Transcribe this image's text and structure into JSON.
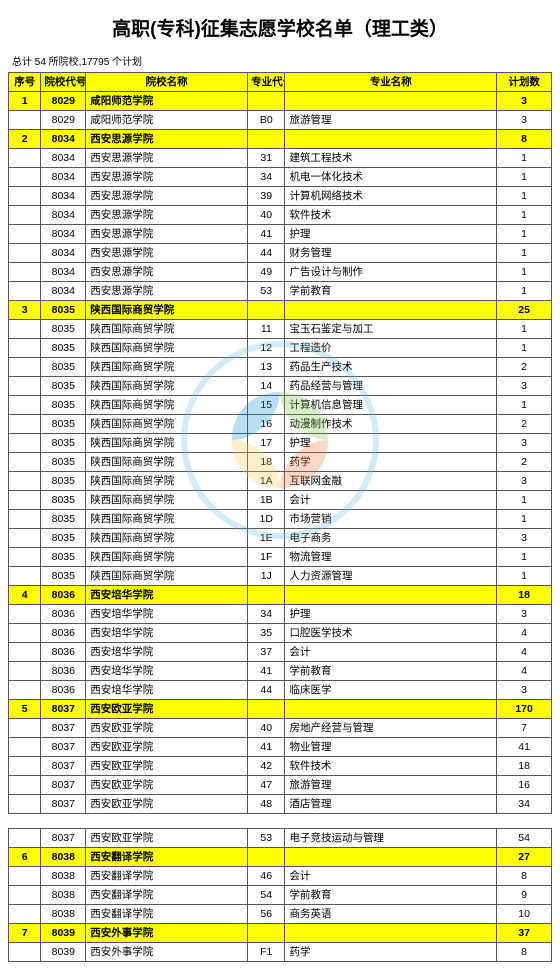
{
  "title": "高职(专科)征集志愿学校名单（理工类）",
  "summary": "总计 54 所院校,17795 个计划",
  "headers": {
    "idx": "序号",
    "schoolCode": "院校代号",
    "schoolName": "院校名称",
    "majorCode": "专业代号",
    "majorName": "专业名称",
    "plan": "计划数"
  },
  "schools": [
    {
      "idx": 1,
      "code": "8029",
      "name": "咸阳师范学院",
      "plan": 3,
      "majors": [
        {
          "mcode": "B0",
          "mname": "旅游管理",
          "plan": 3
        }
      ]
    },
    {
      "idx": 2,
      "code": "8034",
      "name": "西安思源学院",
      "plan": 8,
      "majors": [
        {
          "mcode": "31",
          "mname": "建筑工程技术",
          "plan": 1
        },
        {
          "mcode": "34",
          "mname": "机电一体化技术",
          "plan": 1
        },
        {
          "mcode": "39",
          "mname": "计算机网络技术",
          "plan": 1
        },
        {
          "mcode": "40",
          "mname": "软件技术",
          "plan": 1
        },
        {
          "mcode": "41",
          "mname": "护理",
          "plan": 1
        },
        {
          "mcode": "44",
          "mname": "财务管理",
          "plan": 1
        },
        {
          "mcode": "49",
          "mname": "广告设计与制作",
          "plan": 1
        },
        {
          "mcode": "53",
          "mname": "学前教育",
          "plan": 1
        }
      ]
    },
    {
      "idx": 3,
      "code": "8035",
      "name": "陕西国际商贸学院",
      "plan": 25,
      "majors": [
        {
          "mcode": "11",
          "mname": "宝玉石鉴定与加工",
          "plan": 1
        },
        {
          "mcode": "12",
          "mname": "工程造价",
          "plan": 1
        },
        {
          "mcode": "13",
          "mname": "药品生产技术",
          "plan": 2
        },
        {
          "mcode": "14",
          "mname": "药品经营与管理",
          "plan": 3
        },
        {
          "mcode": "15",
          "mname": "计算机信息管理",
          "plan": 1
        },
        {
          "mcode": "16",
          "mname": "动漫制作技术",
          "plan": 2
        },
        {
          "mcode": "17",
          "mname": "护理",
          "plan": 3
        },
        {
          "mcode": "18",
          "mname": "药学",
          "plan": 2
        },
        {
          "mcode": "1A",
          "mname": "互联网金融",
          "plan": 3
        },
        {
          "mcode": "1B",
          "mname": "会计",
          "plan": 1
        },
        {
          "mcode": "1D",
          "mname": "市场营销",
          "plan": 1
        },
        {
          "mcode": "1E",
          "mname": "电子商务",
          "plan": 3
        },
        {
          "mcode": "1F",
          "mname": "物流管理",
          "plan": 1
        },
        {
          "mcode": "1J",
          "mname": "人力资源管理",
          "plan": 1
        }
      ]
    },
    {
      "idx": 4,
      "code": "8036",
      "name": "西安培华学院",
      "plan": 18,
      "majors": [
        {
          "mcode": "34",
          "mname": "护理",
          "plan": 3
        },
        {
          "mcode": "35",
          "mname": "口腔医学技术",
          "plan": 4
        },
        {
          "mcode": "37",
          "mname": "会计",
          "plan": 4
        },
        {
          "mcode": "41",
          "mname": "学前教育",
          "plan": 4
        },
        {
          "mcode": "44",
          "mname": "临床医学",
          "plan": 3
        }
      ]
    },
    {
      "idx": 5,
      "code": "8037",
      "name": "西安欧亚学院",
      "plan": 170,
      "majors": [
        {
          "mcode": "40",
          "mname": "房地产经营与管理",
          "plan": 7
        },
        {
          "mcode": "41",
          "mname": "物业管理",
          "plan": 41
        },
        {
          "mcode": "42",
          "mname": "软件技术",
          "plan": 18
        },
        {
          "mcode": "47",
          "mname": "旅游管理",
          "plan": 16
        },
        {
          "mcode": "48",
          "mname": "酒店管理",
          "plan": 34
        }
      ]
    }
  ],
  "section2": {
    "preRows": [
      {
        "code": "8037",
        "name": "西安欧亚学院",
        "mcode": "53",
        "mname": "电子竞技运动与管理",
        "plan": 54
      }
    ],
    "schools": [
      {
        "idx": 6,
        "code": "8038",
        "name": "西安翻译学院",
        "plan": 27,
        "majors": [
          {
            "mcode": "46",
            "mname": "会计",
            "plan": 8
          },
          {
            "mcode": "54",
            "mname": "学前教育",
            "plan": 9
          },
          {
            "mcode": "56",
            "mname": "商务英语",
            "plan": 10
          }
        ]
      },
      {
        "idx": 7,
        "code": "8039",
        "name": "西安外事学院",
        "plan": 37,
        "majors": [
          {
            "mcode": "F1",
            "mname": "药学",
            "plan": 8
          }
        ]
      }
    ]
  },
  "watermark": {
    "outer_color": "#5cb8e6",
    "inner_colors": [
      "#7bc043",
      "#f37736",
      "#ffc845",
      "#0392cf"
    ]
  }
}
